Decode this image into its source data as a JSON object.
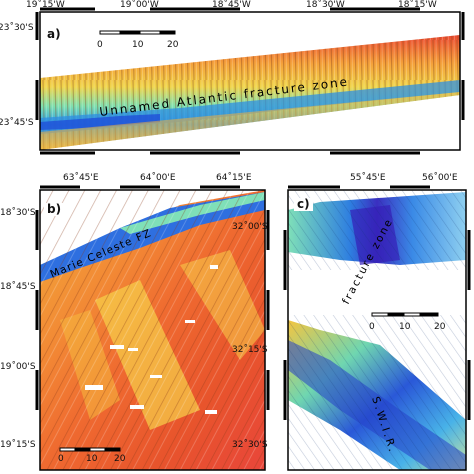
{
  "panel_a": {
    "label": "a)",
    "lon_ticks": [
      "19˚15'W",
      "19˚00'W",
      "18˚45'W",
      "18˚30'W",
      "18˚15'W"
    ],
    "lat_ticks": [
      "23˚30'S",
      "23˚45'S"
    ],
    "scale": {
      "labels": [
        "0",
        "10",
        "20"
      ]
    },
    "annotation": "Unnamed Atlantic fracture zone"
  },
  "panel_b": {
    "label": "b)",
    "lon_ticks": [
      "63˚45'E",
      "64˚00'E",
      "64˚15'E"
    ],
    "lat_ticks": [
      "18˚30'S",
      "18˚45'S",
      "19˚00'S",
      "19˚15'S"
    ],
    "scale": {
      "labels": [
        "0",
        "10",
        "20"
      ]
    },
    "annotation": "Marie Celeste FZ"
  },
  "panel_c": {
    "label": "c)",
    "lon_ticks": [
      "55˚45'E",
      "56˚00'E"
    ],
    "lat_ticks": [
      "32˚00'S",
      "32˚15'S",
      "32˚30'S"
    ],
    "scale": {
      "labels": [
        "0",
        "10",
        "20"
      ]
    },
    "annotation_top": "fracture zone",
    "annotation_bottom": "S.W.I.R."
  },
  "colors": {
    "deep": "#1f3fd0",
    "mid_deep": "#2fa6e8",
    "mid": "#59d6b0",
    "shallow_mid": "#f0d23c",
    "shallow": "#f28a2e",
    "shallowest": "#e63d2c"
  }
}
